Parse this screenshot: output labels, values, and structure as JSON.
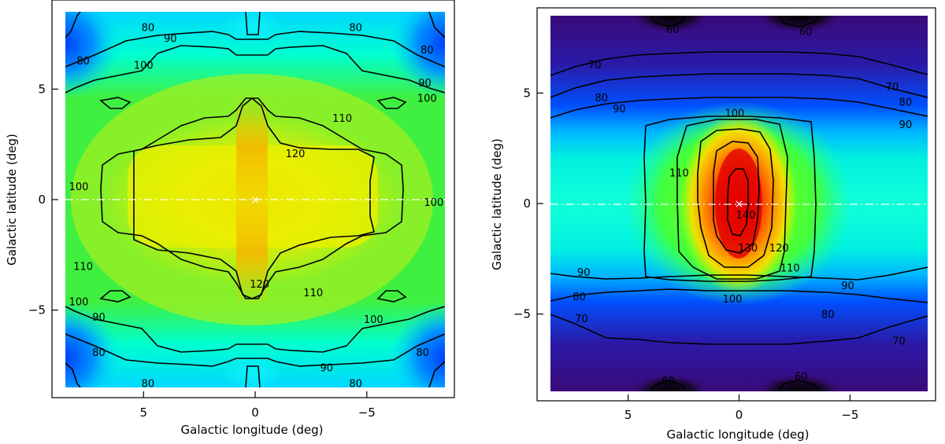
{
  "chart_data": [
    {
      "type": "heatmap",
      "panel": "left",
      "xlabel": "Galactic longitude (deg)",
      "ylabel": "Galactic latitude (deg)",
      "xlim": [
        8.5,
        -8.5
      ],
      "ylim": [
        -8.5,
        8.5
      ],
      "xticks": [
        5,
        0,
        -5
      ],
      "yticks": [
        5,
        0,
        -5
      ],
      "xtick_labels": [
        "5",
        "0",
        "−5"
      ],
      "ytick_labels": [
        "5",
        "0",
        "−5"
      ],
      "colormap": "rainbow",
      "contour_levels": [
        80,
        90,
        100,
        110,
        120
      ],
      "contour_labels": [
        {
          "text": "80",
          "l": 4.8,
          "b": 7.8
        },
        {
          "text": "80",
          "l": -4.5,
          "b": 7.8
        },
        {
          "text": "90",
          "l": 3.8,
          "b": 7.3
        },
        {
          "text": "80",
          "l": 7.7,
          "b": 6.3
        },
        {
          "text": "80",
          "l": -7.7,
          "b": 6.8
        },
        {
          "text": "100",
          "l": 5.0,
          "b": 6.1
        },
        {
          "text": "90",
          "l": -7.6,
          "b": 5.3
        },
        {
          "text": "100",
          "l": -7.7,
          "b": 4.6
        },
        {
          "text": "110",
          "l": -3.9,
          "b": 3.7
        },
        {
          "text": "120",
          "l": -1.8,
          "b": 2.1
        },
        {
          "text": "100",
          "l": 7.9,
          "b": 0.6
        },
        {
          "text": "100",
          "l": -8.0,
          "b": -0.1
        },
        {
          "text": "110",
          "l": 7.7,
          "b": -3.0
        },
        {
          "text": "120",
          "l": -0.2,
          "b": -3.8
        },
        {
          "text": "110",
          "l": -2.6,
          "b": -4.2
        },
        {
          "text": "100",
          "l": 7.9,
          "b": -4.6
        },
        {
          "text": "90",
          "l": 7.0,
          "b": -5.3
        },
        {
          "text": "100",
          "l": -5.3,
          "b": -5.4
        },
        {
          "text": "80",
          "l": 7.0,
          "b": -6.9
        },
        {
          "text": "80",
          "l": -7.5,
          "b": -6.9
        },
        {
          "text": "90",
          "l": -3.2,
          "b": -7.6
        },
        {
          "text": "80",
          "l": 4.8,
          "b": -8.3
        },
        {
          "text": "80",
          "l": -4.5,
          "b": -8.3
        }
      ],
      "markers": [
        {
          "symbol": "×",
          "l": 0,
          "b": 0
        }
      ],
      "reference_line": {
        "b": 0,
        "style": "dash-dot",
        "color": "#ffffff"
      }
    },
    {
      "type": "heatmap",
      "panel": "right",
      "xlabel": "Galactic longitude (deg)",
      "ylabel": "Galactic latitude (deg)",
      "xlim": [
        8.5,
        -8.5
      ],
      "ylim": [
        -8.5,
        8.5
      ],
      "xticks": [
        5,
        0,
        -5
      ],
      "yticks": [
        5,
        0,
        -5
      ],
      "xtick_labels": [
        "5",
        "0",
        "−5"
      ],
      "ytick_labels": [
        "5",
        "0",
        "−5"
      ],
      "colormap": "rainbow_black_to_red",
      "contour_levels": [
        60,
        70,
        80,
        90,
        100,
        110,
        120,
        130,
        140
      ],
      "contour_labels": [
        {
          "text": "60",
          "l": 3.0,
          "b": 7.9
        },
        {
          "text": "60",
          "l": -2.8,
          "b": -7.8
        },
        {
          "text": "60",
          "l": 3.2,
          "b": -8.0
        },
        {
          "text": "60",
          "l": -3.0,
          "b": 7.8
        },
        {
          "text": "70",
          "l": 6.5,
          "b": 6.3
        },
        {
          "text": "70",
          "l": -6.9,
          "b": 5.3
        },
        {
          "text": "80",
          "l": 6.2,
          "b": 4.8
        },
        {
          "text": "80",
          "l": -7.5,
          "b": 4.6
        },
        {
          "text": "90",
          "l": 5.4,
          "b": 4.3
        },
        {
          "text": "90",
          "l": -7.5,
          "b": 3.6
        },
        {
          "text": "100",
          "l": 0.2,
          "b": 4.1
        },
        {
          "text": "110",
          "l": 2.7,
          "b": 1.4
        },
        {
          "text": "120",
          "l": -1.8,
          "b": -2.0
        },
        {
          "text": "130",
          "l": -0.4,
          "b": -2.0
        },
        {
          "text": "140",
          "l": -0.3,
          "b": -0.5
        },
        {
          "text": "110",
          "l": -2.3,
          "b": -2.9
        },
        {
          "text": "100",
          "l": 0.3,
          "b": -4.3
        },
        {
          "text": "90",
          "l": 7.0,
          "b": -3.1
        },
        {
          "text": "90",
          "l": -4.9,
          "b": -3.7
        },
        {
          "text": "80",
          "l": 7.2,
          "b": -4.2
        },
        {
          "text": "80",
          "l": -4.0,
          "b": -5.0
        },
        {
          "text": "70",
          "l": 7.1,
          "b": -5.2
        },
        {
          "text": "70",
          "l": -7.2,
          "b": -6.2
        }
      ],
      "markers": [
        {
          "symbol": "×",
          "l": 0,
          "b": 0
        }
      ],
      "reference_line": {
        "b": 0,
        "style": "dash-dot",
        "color": "#ffffff"
      }
    }
  ]
}
